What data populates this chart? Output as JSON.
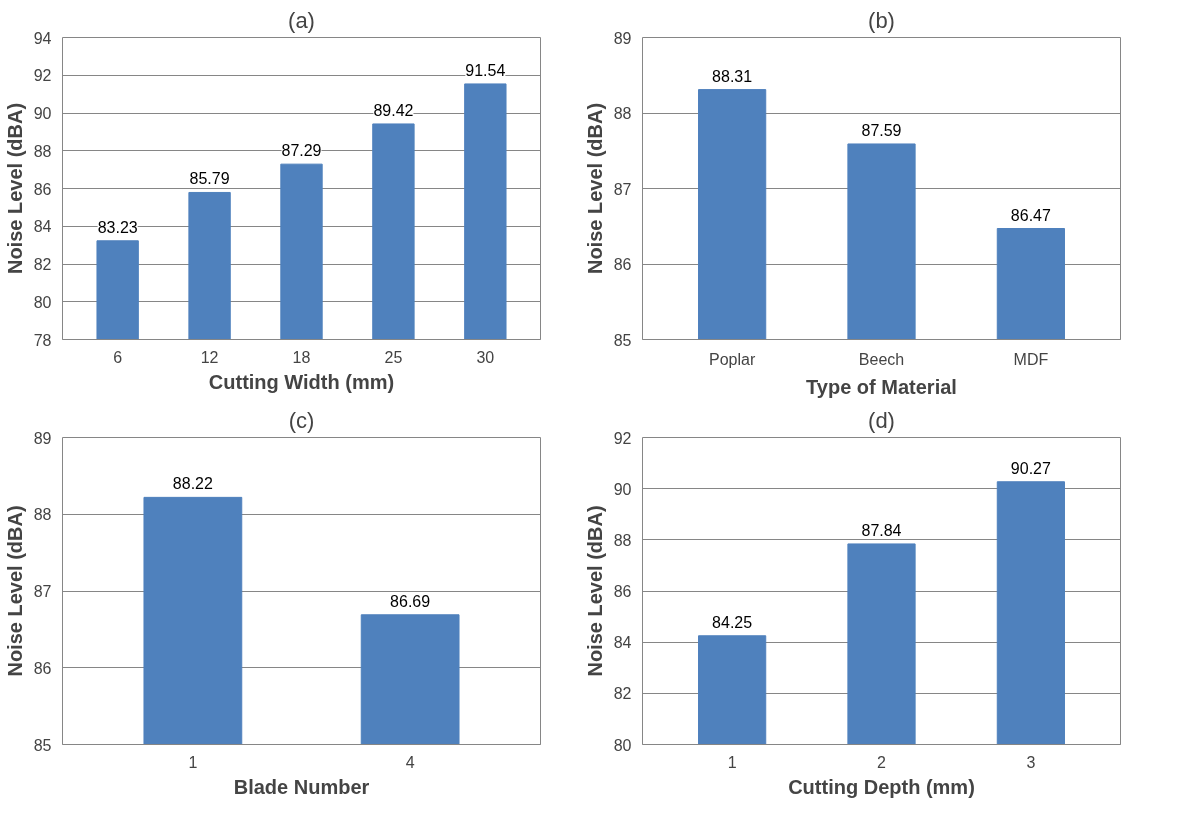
{
  "chart_data": [
    {
      "type": "bar",
      "title": "(a)",
      "xlabel": "Cutting Width (mm)",
      "ylabel": "Noise Level (dBA)",
      "categories": [
        "6",
        "12",
        "18",
        "25",
        "30"
      ],
      "values": [
        83.23,
        85.79,
        87.29,
        89.42,
        91.54
      ],
      "color": "#4f81bd",
      "ylim": [
        78,
        94
      ],
      "yticks": [
        78,
        80,
        82,
        84,
        86,
        88,
        90,
        92,
        94
      ],
      "grid": "y",
      "data_labels": true
    },
    {
      "type": "bar",
      "title": "(b)",
      "xlabel": "Type of Material",
      "ylabel": "Noise Level (dBA)",
      "categories": [
        "Poplar",
        "Beech",
        "MDF"
      ],
      "values": [
        88.31,
        87.59,
        86.47
      ],
      "color": "#4f81bd",
      "ylim": [
        85,
        89
      ],
      "yticks": [
        85,
        86,
        87,
        88,
        89
      ],
      "grid": "y",
      "data_labels": true
    },
    {
      "type": "bar",
      "title": "(c)",
      "xlabel": "Blade Number",
      "ylabel": "Noise Level (dBA)",
      "categories": [
        "1",
        "4"
      ],
      "values": [
        88.22,
        86.69
      ],
      "color": "#4f81bd",
      "ylim": [
        85,
        89
      ],
      "yticks": [
        85,
        86,
        87,
        88,
        89
      ],
      "grid": "y",
      "data_labels": true
    },
    {
      "type": "bar",
      "title": "(d)",
      "xlabel": "Cutting Depth (mm)",
      "ylabel": "Noise Level (dBA)",
      "categories": [
        "1",
        "2",
        "3"
      ],
      "values": [
        84.25,
        87.84,
        90.27
      ],
      "color": "#4f81bd",
      "ylim": [
        80,
        92
      ],
      "yticks": [
        80,
        82,
        84,
        86,
        88,
        90,
        92
      ],
      "grid": "y",
      "data_labels": true
    }
  ]
}
